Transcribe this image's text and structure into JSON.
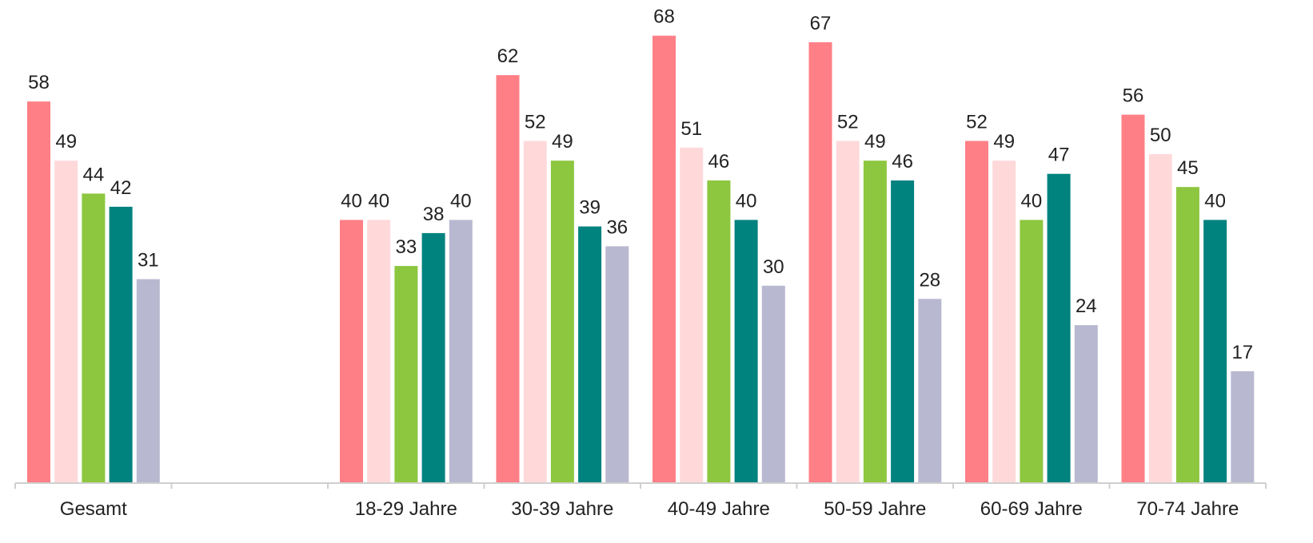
{
  "chart_data": {
    "type": "bar",
    "categories": [
      "Gesamt",
      "",
      "18-29 Jahre",
      "30-39 Jahre",
      "40-49 Jahre",
      "50-59 Jahre",
      "60-69 Jahre",
      "70-74 Jahre"
    ],
    "series": [
      {
        "color": "#ff7f86",
        "values": [
          58,
          null,
          40,
          62,
          68,
          67,
          52,
          56
        ]
      },
      {
        "color": "#ffd9da",
        "values": [
          49,
          null,
          40,
          52,
          51,
          52,
          49,
          50
        ]
      },
      {
        "color": "#8dc63f",
        "values": [
          44,
          null,
          33,
          49,
          46,
          49,
          40,
          45
        ]
      },
      {
        "color": "#00827f",
        "values": [
          42,
          null,
          38,
          39,
          40,
          46,
          47,
          40
        ]
      },
      {
        "color": "#b8b8d1",
        "values": [
          31,
          null,
          40,
          36,
          30,
          28,
          24,
          17
        ]
      }
    ],
    "ylim": [
      0,
      72
    ],
    "grid": false,
    "legend": "none"
  }
}
